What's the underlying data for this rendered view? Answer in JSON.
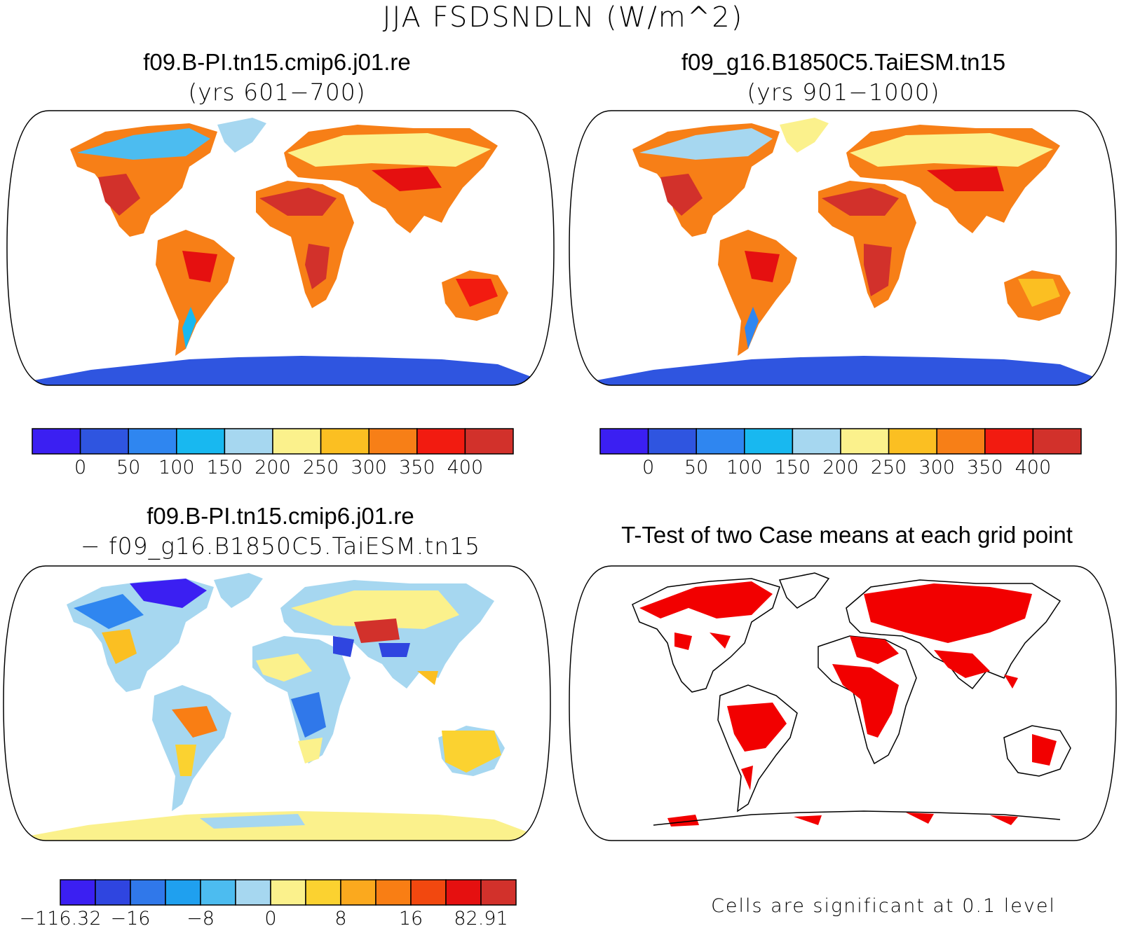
{
  "title": "JJA FSDSNDLN (W/m^2)",
  "panels": {
    "top_left": {
      "title": "f09.B-PI.tn15.cmip6.j01.re",
      "subtitle": "(yrs 601−700)"
    },
    "top_right": {
      "title": "f09_g16.B1850C5.TaiESM.tn15",
      "subtitle": "(yrs 901−1000)"
    },
    "bottom_left": {
      "title": "f09.B-PI.tn15.cmip6.j01.re",
      "subtitle": "− f09_g16.B1850C5.TaiESM.tn15"
    },
    "bottom_right": {
      "title": "T-Test of two Case means at each grid point",
      "note": "Cells are significant at 0.1 level"
    }
  },
  "colorbars": {
    "absolute": {
      "colors": [
        "#3b1ff2",
        "#2f55e0",
        "#2f86f0",
        "#18b8f0",
        "#a6d7f0",
        "#fbf18c",
        "#fbbf22",
        "#f77f17",
        "#f21b10",
        "#d2312b"
      ],
      "labels": [
        "0",
        "50",
        "100",
        "150",
        "200",
        "250",
        "300",
        "350",
        "400"
      ]
    },
    "difference": {
      "colors": [
        "#3b1ff2",
        "#2f45e0",
        "#3078ea",
        "#1fa0ef",
        "#4cbcf0",
        "#a6d7f0",
        "#fbf18c",
        "#fbd230",
        "#fba91e",
        "#f97e14",
        "#f2480f",
        "#e51010",
        "#d2312b"
      ],
      "labels": [
        "−116.32",
        "−16",
        "−8",
        "0",
        "8",
        "16",
        "82.91"
      ]
    }
  },
  "significance_color": "#f20000"
}
